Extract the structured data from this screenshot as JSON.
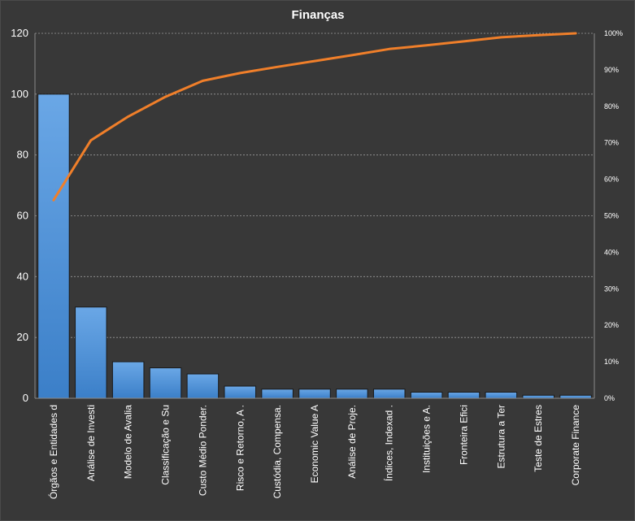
{
  "chart_data": {
    "type": "bar",
    "title": "Finanças",
    "categories": [
      "Órgãos e Entidades d",
      "Análise de Investi",
      "Modelo de Avalia",
      "Classificação e Su",
      "Custo Médio Ponder.",
      "Risco e Retorno, A .",
      "Custódia, Compensa.",
      "Economic Value A",
      "Análise de Proje.",
      "Índices, Indexad .",
      "Instituições e A.",
      "Fronteira Efici",
      "Estrutura a Ter",
      "Teste de Estres",
      "Corporate Finance"
    ],
    "series": [
      {
        "type": "bar",
        "axis": "left",
        "values": [
          100,
          30,
          12,
          10,
          8,
          4,
          3,
          3,
          3,
          3,
          2,
          2,
          2,
          1,
          1
        ],
        "color": "#4a90d9"
      },
      {
        "type": "line",
        "axis": "right",
        "values": [
          54.3,
          70.7,
          77.2,
          82.6,
          87.0,
          89.1,
          90.8,
          92.4,
          94.0,
          95.7,
          96.7,
          97.8,
          98.9,
          99.5,
          100.0
        ],
        "color": "#f07f2a"
      }
    ],
    "y_left": {
      "ylim": [
        0,
        120
      ],
      "ticks": [
        0,
        20,
        40,
        60,
        80,
        100,
        120
      ]
    },
    "y_right": {
      "ylim": [
        0,
        100
      ],
      "ticks": [
        "0%",
        "10%",
        "20%",
        "30%",
        "40%",
        "50%",
        "60%",
        "70%",
        "80%",
        "90%",
        "100%"
      ]
    },
    "grid": true,
    "legend": "none",
    "background": "#383838"
  }
}
